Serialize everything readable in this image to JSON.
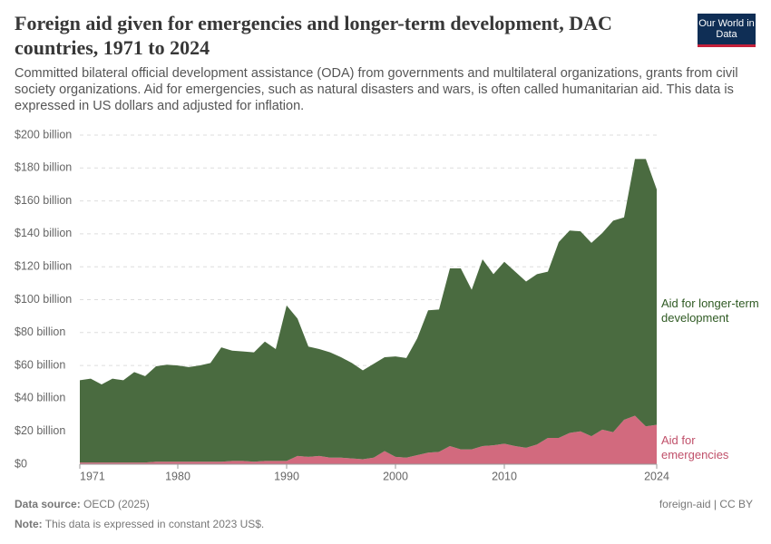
{
  "chart_data": {
    "type": "stacked-area",
    "title": "Foreign aid given for emergencies and longer-term development, DAC countries, 1971 to 2024",
    "subtitle": "Committed bilateral official development assistance (ODA) from governments and multilateral organizations, grants from civil society organizations. Aid for emergencies, such as natural disasters and wars, is often called humanitarian aid. This data is expressed in US dollars and adjusted for inflation.",
    "logo": "Our World in Data",
    "x": [
      1971,
      1972,
      1973,
      1974,
      1975,
      1976,
      1977,
      1978,
      1979,
      1980,
      1981,
      1982,
      1983,
      1984,
      1985,
      1986,
      1987,
      1988,
      1989,
      1990,
      1991,
      1992,
      1993,
      1994,
      1995,
      1996,
      1997,
      1998,
      1999,
      2000,
      2001,
      2002,
      2003,
      2004,
      2005,
      2006,
      2007,
      2008,
      2009,
      2010,
      2011,
      2012,
      2013,
      2014,
      2015,
      2016,
      2017,
      2018,
      2019,
      2020,
      2021,
      2022,
      2023,
      2024
    ],
    "series": [
      {
        "name": "Aid for emergencies",
        "color": "#d26a7e",
        "label_color": "#c0506a",
        "values": [
          1,
          1,
          1,
          1,
          1,
          1,
          1,
          1.5,
          1.5,
          1.5,
          1.5,
          1.5,
          1.5,
          1.5,
          2,
          2,
          1.5,
          2,
          2,
          2,
          5,
          4.5,
          5,
          4,
          4,
          3.5,
          3,
          4,
          8,
          4.5,
          4,
          5.5,
          7,
          7.5,
          11,
          9,
          9,
          11,
          11.5,
          12.5,
          11,
          10,
          12,
          16,
          16,
          19,
          20,
          17,
          21,
          19.5,
          27,
          29.5,
          23,
          24
        ]
      },
      {
        "name": "Aid for longer-term development",
        "color": "#4a6b40",
        "label_color": "#2f5a23",
        "values": [
          50,
          51,
          47.5,
          51,
          50,
          55,
          52.5,
          58,
          59,
          58.5,
          57.5,
          58.5,
          60,
          69.5,
          67,
          66.5,
          66.5,
          72.5,
          68,
          94.5,
          83.5,
          67,
          65,
          64,
          61,
          58,
          54,
          57,
          57,
          61,
          60.5,
          71,
          86.5,
          86.5,
          108,
          110,
          97,
          113.5,
          104,
          110.5,
          106,
          101,
          103.5,
          101,
          119,
          123,
          121.5,
          117.5,
          119.5,
          128.5,
          123,
          156,
          162.5,
          143
        ]
      }
    ],
    "xlim": [
      1971,
      2024
    ],
    "xticks": [
      1971,
      1980,
      1990,
      2000,
      2010,
      2024
    ],
    "ylim": [
      0,
      200
    ],
    "yticks": [
      {
        "value": 0,
        "label": "$0"
      },
      {
        "value": 20,
        "label": "$20 billion"
      },
      {
        "value": 40,
        "label": "$40 billion"
      },
      {
        "value": 60,
        "label": "$60 billion"
      },
      {
        "value": 80,
        "label": "$80 billion"
      },
      {
        "value": 100,
        "label": "$100 billion"
      },
      {
        "value": 120,
        "label": "$120 billion"
      },
      {
        "value": 140,
        "label": "$140 billion"
      },
      {
        "value": 160,
        "label": "$160 billion"
      },
      {
        "value": 180,
        "label": "$180 billion"
      },
      {
        "value": 200,
        "label": "$200 billion"
      }
    ],
    "grid": true,
    "source_label": "Data source:",
    "source": "OECD (2025)",
    "note_label": "Note:",
    "note": "This data is expressed in constant 2023 US$.",
    "license": "foreign-aid | CC BY"
  }
}
